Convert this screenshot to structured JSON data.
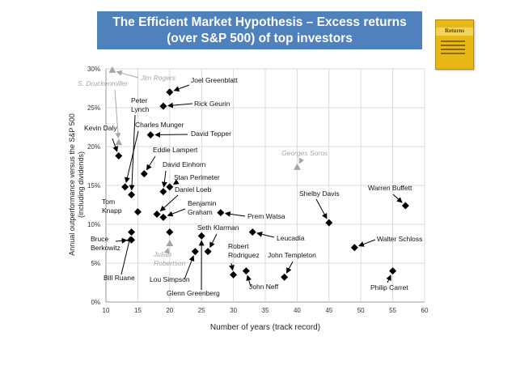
{
  "title": {
    "line1": "The Efficient Market Hypothesis – Excess returns",
    "line2": "(over S&P 500) of  top investors"
  },
  "book": {
    "title": "Returns"
  },
  "chart_data": {
    "type": "scatter",
    "xlabel": "Number of years (track record)",
    "ylabel": "Annual outperformance versus the S&P 500 (including dividends)",
    "xlim": [
      10,
      60
    ],
    "ylim": [
      0,
      30
    ],
    "x_ticks": [
      "10",
      "15",
      "20",
      "25",
      "30",
      "35",
      "40",
      "45",
      "50",
      "55",
      "60"
    ],
    "y_ticks": [
      "0%",
      "5%",
      "10%",
      "15%",
      "20%",
      "25%",
      "30%"
    ],
    "grid": true,
    "series": [
      {
        "marker": "diamond",
        "color": "#000000",
        "points": [
          {
            "label": "Joel Greenblatt",
            "x": 20,
            "y": 27.0
          },
          {
            "label": "Rick Geurin",
            "x": 19,
            "y": 25.2
          },
          {
            "label": "Peter Lynch",
            "x": 14,
            "y": 13.8
          },
          {
            "label": "Charles Munger",
            "x": 13,
            "y": 14.8
          },
          {
            "label": "David Tepper",
            "x": 17,
            "y": 21.5
          },
          {
            "label": "Kevin Daly",
            "x": 12,
            "y": 18.8
          },
          {
            "label": "Eddie Lampert",
            "x": 16,
            "y": 16.5
          },
          {
            "label": "David Einhorn",
            "x": 19,
            "y": 14.2
          },
          {
            "label": "Stan Perlmeter",
            "x": 20,
            "y": 14.8
          },
          {
            "label": "Daniel Loeb",
            "x": 18,
            "y": 11.3
          },
          {
            "label": "Tom Knapp",
            "x": 15,
            "y": 11.6
          },
          {
            "label": "Benjamin Graham",
            "x": 19,
            "y": 10.9
          },
          {
            "label": "Prem Watsa",
            "x": 28,
            "y": 11.5
          },
          {
            "label": "Seth Klarman",
            "x": 26,
            "y": 6.5
          },
          {
            "label": "Bruce Berkowitz",
            "x": 14,
            "y": 8.0
          },
          {
            "label": "Bill Ruane",
            "x": 14,
            "y": 9.0
          },
          {
            "label": "Lou Simpson",
            "x": 24,
            "y": 6.5
          },
          {
            "label": "Glenn Greenberg",
            "x": 25,
            "y": 8.5
          },
          {
            "label": "Robert Rodriguez",
            "x": 30,
            "y": 3.5
          },
          {
            "label": "John Neff",
            "x": 32,
            "y": 4.0
          },
          {
            "label": "John Templeton",
            "x": 38,
            "y": 3.2
          },
          {
            "label": "Leucadia",
            "x": 33,
            "y": 9.0
          },
          {
            "label": "Shelby Davis",
            "x": 45,
            "y": 10.2
          },
          {
            "label": "Warren Buffett",
            "x": 57,
            "y": 12.4
          },
          {
            "label": "Walter Schloss",
            "x": 49,
            "y": 7.0
          },
          {
            "label": "Philip Carret",
            "x": 55,
            "y": 4.0
          },
          {
            "label": "",
            "x": 20,
            "y": 9.0
          }
        ]
      },
      {
        "marker": "triangle",
        "color": "#a6a6a6",
        "points": [
          {
            "label": "Jim Rogers",
            "x": 11,
            "y": 29.8
          },
          {
            "label": "S. Druckenmiller",
            "x": 12,
            "y": 20.5
          },
          {
            "label": "Georges Soros",
            "x": 40,
            "y": 17.3
          },
          {
            "label": "Julian Robertson",
            "x": 20,
            "y": 7.5
          }
        ]
      }
    ]
  }
}
